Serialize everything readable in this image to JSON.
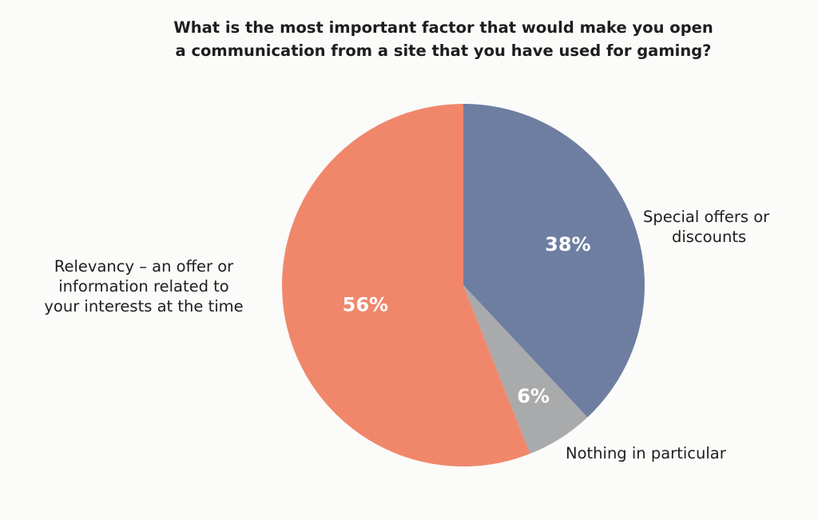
{
  "chart_data": {
    "type": "pie",
    "title_lines": [
      "What is the most important factor that would make you open",
      "a communication from a site that you have used for gaming?"
    ],
    "slices": [
      {
        "label_lines": [
          "Special offers or",
          "discounts"
        ],
        "value": 38,
        "value_label": "38%",
        "color": "#6e7ea1"
      },
      {
        "label_lines": [
          "Nothing in particular"
        ],
        "value": 6,
        "value_label": "6%",
        "color": "#a9aaac"
      },
      {
        "label_lines": [
          "Relevancy – an offer or",
          "information related to",
          "your interests at the time"
        ],
        "value": 56,
        "value_label": "56%",
        "color": "#f0876b"
      }
    ],
    "start": "top",
    "direction": "clockwise"
  }
}
